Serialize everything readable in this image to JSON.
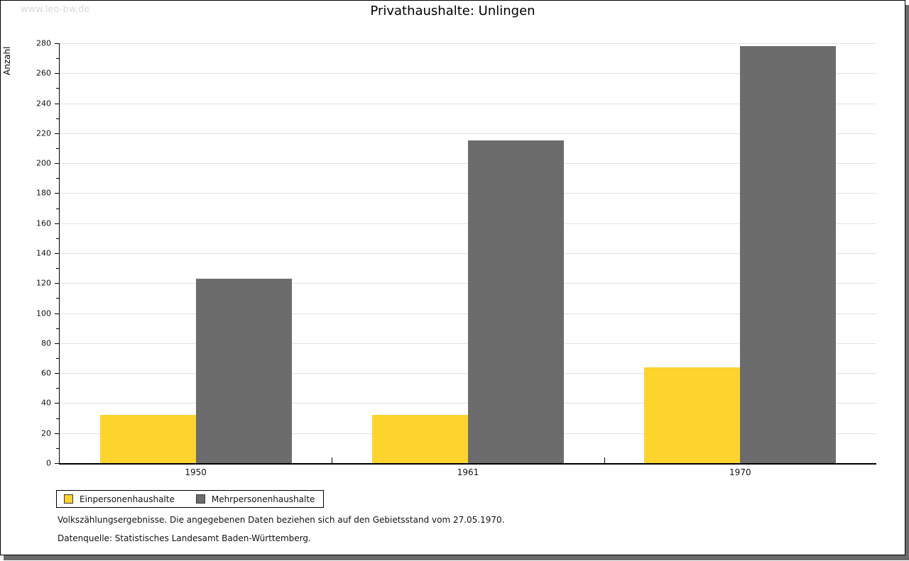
{
  "watermark": "www.leo-bw.de",
  "title": "Privathaushalte: Unlingen",
  "chart_data": {
    "type": "bar",
    "title": "Privathaushalte: Unlingen",
    "categories": [
      "1950",
      "1961",
      "1970"
    ],
    "series": [
      {
        "name": "Einpersonenhaushalte",
        "color": "#fdd32e",
        "values": [
          32,
          32,
          64
        ]
      },
      {
        "name": "Mehrpersonenhaushalte",
        "color": "#6c6c6c",
        "values": [
          123,
          215,
          278
        ]
      }
    ],
    "xlabel": "",
    "ylabel": "Anzahl",
    "ylim": [
      0,
      280
    ],
    "ytick_step": 20,
    "minor_tick_step": 10,
    "grid": true,
    "legend_position": "bottom-left",
    "gridline_color": "#e2e2e2"
  },
  "footer": {
    "line1": "Volkszählungsergebnisse. Die angegebenen Daten beziehen sich auf den Gebietsstand vom 27.05.1970.",
    "line2": "Datenquelle: Statistisches Landesamt Baden-Württemberg."
  }
}
